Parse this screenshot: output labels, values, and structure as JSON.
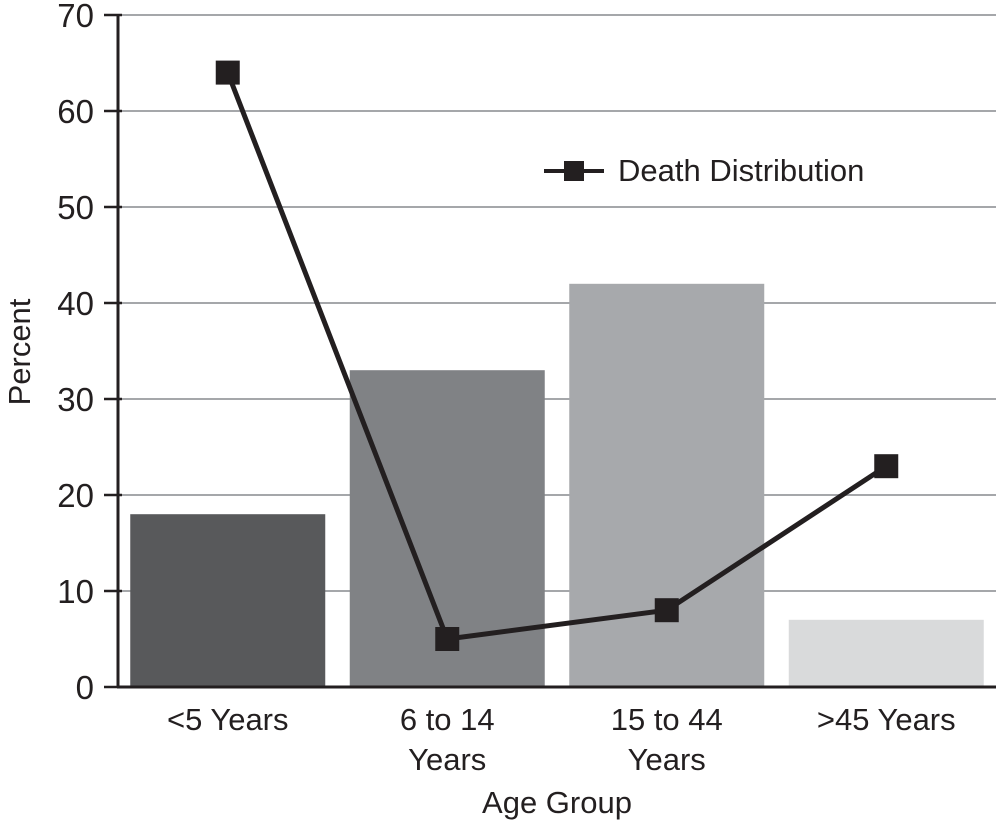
{
  "chart_data": {
    "type": "bar+line",
    "categories": [
      "<5 Years",
      "6 to 14\nYears",
      "15 to 44\nYears",
      ">45 Years"
    ],
    "series": [
      {
        "type": "bar",
        "values": [
          18,
          33,
          42,
          7
        ],
        "colors": [
          "#58595B",
          "#808285",
          "#A7A9AC",
          "#D9DADB"
        ]
      },
      {
        "type": "line",
        "name": "Death Distribution",
        "values": [
          64,
          5,
          8,
          23
        ],
        "color": "#231F20",
        "marker": "square"
      }
    ],
    "title": "",
    "xlabel": "Age Group",
    "ylabel": "Percent",
    "ylim": [
      0,
      70
    ],
    "yticks": [
      0,
      10,
      20,
      30,
      40,
      50,
      60,
      70
    ],
    "grid": true,
    "legend": {
      "label": "Death Distribution",
      "position": "inside-top-center-right"
    },
    "colors": {
      "grid": "#A5A7AA",
      "axis": "#231F20",
      "text": "#231F20"
    }
  }
}
